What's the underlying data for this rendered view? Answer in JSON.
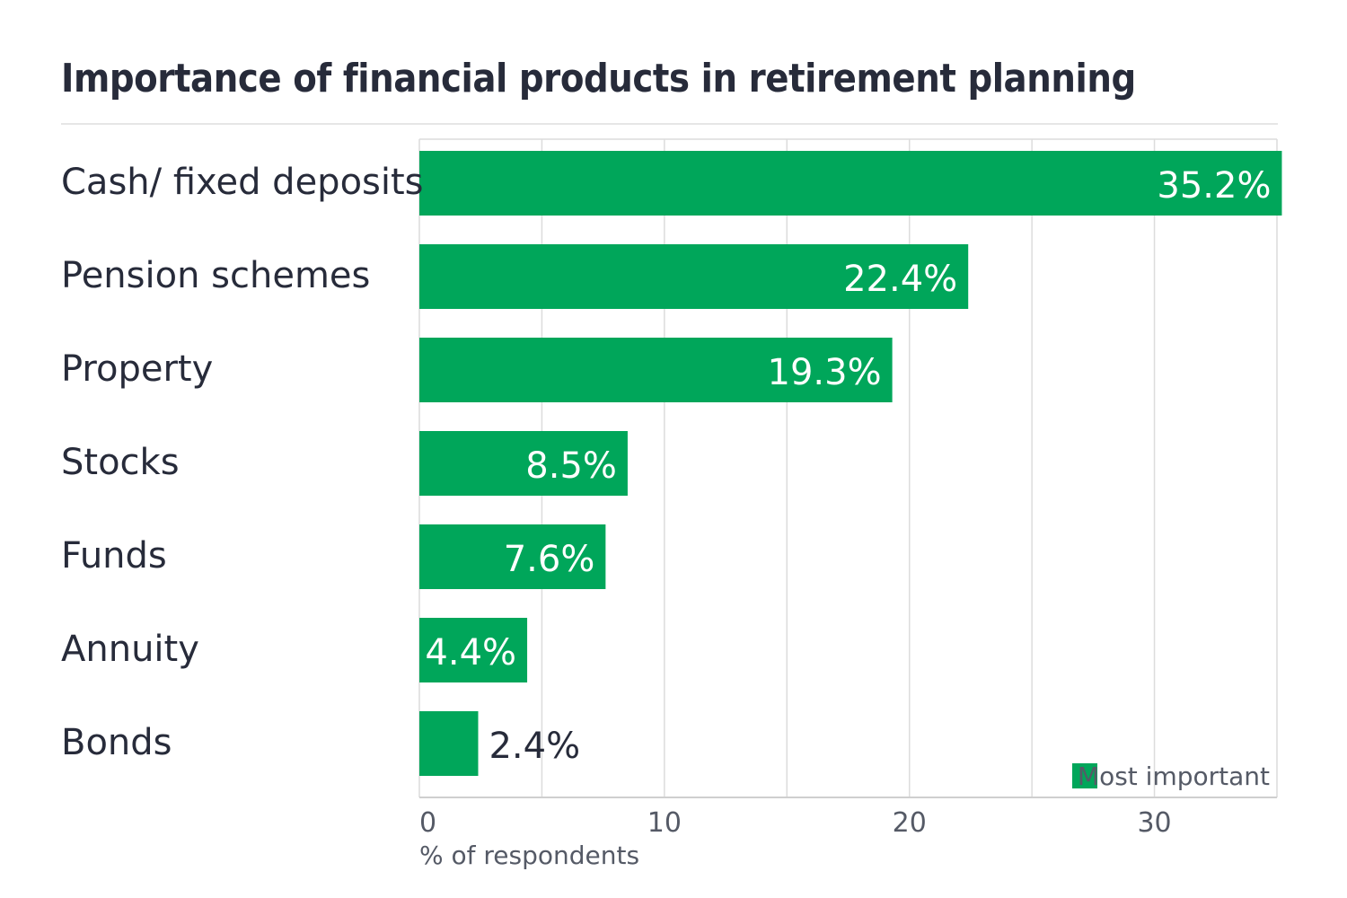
{
  "title": "Importance of financial products in retirement planning",
  "chart_data": {
    "type": "bar",
    "orientation": "horizontal",
    "title": "Importance of financial products in retirement planning",
    "xlabel": "% of respondents",
    "ylabel": "",
    "categories": [
      "Cash/ fixed deposits",
      "Pension schemes",
      "Property",
      "Stocks",
      "Funds",
      "Annuity",
      "Bonds"
    ],
    "series": [
      {
        "name": "Most important",
        "values": [
          35.2,
          22.4,
          19.3,
          8.5,
          7.6,
          4.4,
          2.4
        ],
        "color": "#00a65a"
      }
    ],
    "data_labels": [
      "35.2%",
      "22.4%",
      "19.3%",
      "8.5%",
      "7.6%",
      "4.4%",
      "2.4%"
    ],
    "xlim": [
      0,
      35
    ],
    "xticks": [
      0,
      10,
      20,
      30
    ],
    "grid": true,
    "legend_position": "bottom-right",
    "colors": {
      "bar": "#00a65a",
      "text": "#272b3a",
      "grid": "#dcdcdc",
      "label_inside": "#ffffff"
    }
  }
}
